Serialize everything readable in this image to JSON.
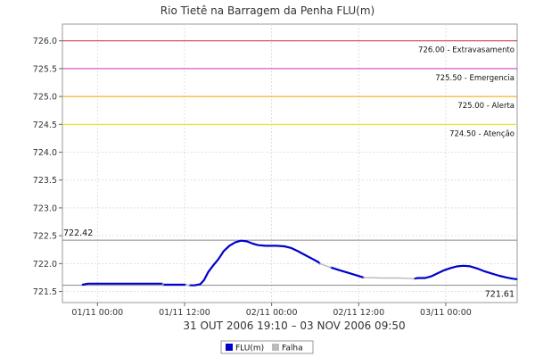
{
  "chart_data": {
    "type": "line",
    "title": "Rio Tietê na Barragem da Penha FLU(m)",
    "xlabel": "31 OUT 2006 19:10 – 03 NOV 2006 09:50",
    "ylabel": "",
    "ylim": [
      721.3,
      726.3
    ],
    "yticks": [
      721.5,
      722.0,
      722.5,
      723.0,
      723.5,
      724.0,
      724.5,
      725.0,
      725.5,
      726.0
    ],
    "ytick_labels": [
      "721.5",
      "722.0",
      "722.5",
      "723.0",
      "723.5",
      "724.0",
      "724.5",
      "725.0",
      "725.5",
      "726.0"
    ],
    "xlim": [
      0,
      62.67
    ],
    "xticks": [
      {
        "x": 4.83,
        "label": "01/11 00:00"
      },
      {
        "x": 16.83,
        "label": "01/11 12:00"
      },
      {
        "x": 28.83,
        "label": "02/11 00:00"
      },
      {
        "x": 40.83,
        "label": "02/11 12:00"
      },
      {
        "x": 52.83,
        "label": "03/11 00:00"
      }
    ],
    "grid": true,
    "thresholds": [
      {
        "value": 726.0,
        "label": "726.00 - Extravasamento",
        "color": "#cc3333"
      },
      {
        "value": 725.5,
        "label": "725.50 - Emergencia",
        "color": "#cc33cc"
      },
      {
        "value": 725.0,
        "label": "725.00 - Alerta",
        "color": "#ff9900"
      },
      {
        "value": 724.5,
        "label": "724.50 - Atenção",
        "color": "#e6e600"
      }
    ],
    "reference_lines": [
      {
        "value": 722.42,
        "label": "722.42",
        "color": "#888888",
        "label_pos": "left"
      },
      {
        "value": 721.61,
        "label": "721.61",
        "color": "#888888",
        "label_pos": "right"
      }
    ],
    "series": [
      {
        "name": "FLU(m)",
        "color": "#0000cc",
        "segments": [
          [
            [
              2.8,
              721.62
            ],
            [
              3.5,
              721.64
            ],
            [
              6,
              721.64
            ],
            [
              9,
              721.64
            ],
            [
              13.8,
              721.64
            ]
          ],
          [
            [
              13.9,
              721.62
            ],
            [
              17.0,
              721.62
            ]
          ],
          [
            [
              17.5,
              721.61
            ],
            [
              18.2,
              721.61
            ],
            [
              19.0,
              721.63
            ],
            [
              19.5,
              721.7
            ],
            [
              20.1,
              721.85
            ],
            [
              20.8,
              721.97
            ],
            [
              21.5,
              722.08
            ],
            [
              22.2,
              722.22
            ],
            [
              23.0,
              722.32
            ],
            [
              23.8,
              722.38
            ],
            [
              24.6,
              722.41
            ],
            [
              25.4,
              722.4
            ],
            [
              26.2,
              722.36
            ],
            [
              27.0,
              722.33
            ],
            [
              28.0,
              722.32
            ],
            [
              29.5,
              722.32
            ],
            [
              30.6,
              722.31
            ],
            [
              31.5,
              722.28
            ],
            [
              32.5,
              722.22
            ],
            [
              33.5,
              722.15
            ],
            [
              34.5,
              722.08
            ],
            [
              35.2,
              722.03
            ],
            [
              35.5,
              722.0
            ]
          ],
          [
            [
              37.0,
              721.93
            ],
            [
              38.2,
              721.88
            ],
            [
              39.5,
              721.83
            ],
            [
              40.5,
              721.79
            ],
            [
              41.5,
              721.75
            ]
          ],
          [
            [
              48.5,
              721.73
            ],
            [
              49.0,
              721.74
            ],
            [
              50.0,
              721.74
            ],
            [
              50.8,
              721.77
            ],
            [
              51.8,
              721.83
            ],
            [
              52.6,
              721.88
            ],
            [
              53.5,
              721.92
            ],
            [
              54.4,
              721.95
            ],
            [
              55.3,
              721.96
            ],
            [
              56.2,
              721.95
            ],
            [
              57.2,
              721.91
            ],
            [
              58.2,
              721.86
            ],
            [
              59.2,
              721.82
            ],
            [
              60.2,
              721.78
            ],
            [
              61.2,
              721.75
            ],
            [
              62.0,
              721.73
            ],
            [
              62.6,
              721.72
            ]
          ]
        ]
      },
      {
        "name": "Falha",
        "color": "#bbbbbb",
        "segments": [
          [
            [
              13.8,
              721.64
            ],
            [
              13.9,
              721.62
            ]
          ],
          [
            [
              17.0,
              721.62
            ],
            [
              17.5,
              721.61
            ]
          ],
          [
            [
              35.5,
              722.0
            ],
            [
              36.3,
              721.96
            ],
            [
              37.0,
              721.93
            ]
          ],
          [
            [
              41.5,
              721.75
            ],
            [
              44.0,
              721.74
            ],
            [
              46.5,
              721.74
            ],
            [
              48.5,
              721.73
            ]
          ]
        ]
      }
    ],
    "legend": {
      "position": "bottom-center",
      "entries": [
        {
          "label": "FLU(m)",
          "color": "#0000cc"
        },
        {
          "label": "Falha",
          "color": "#bbbbbb"
        }
      ]
    }
  }
}
